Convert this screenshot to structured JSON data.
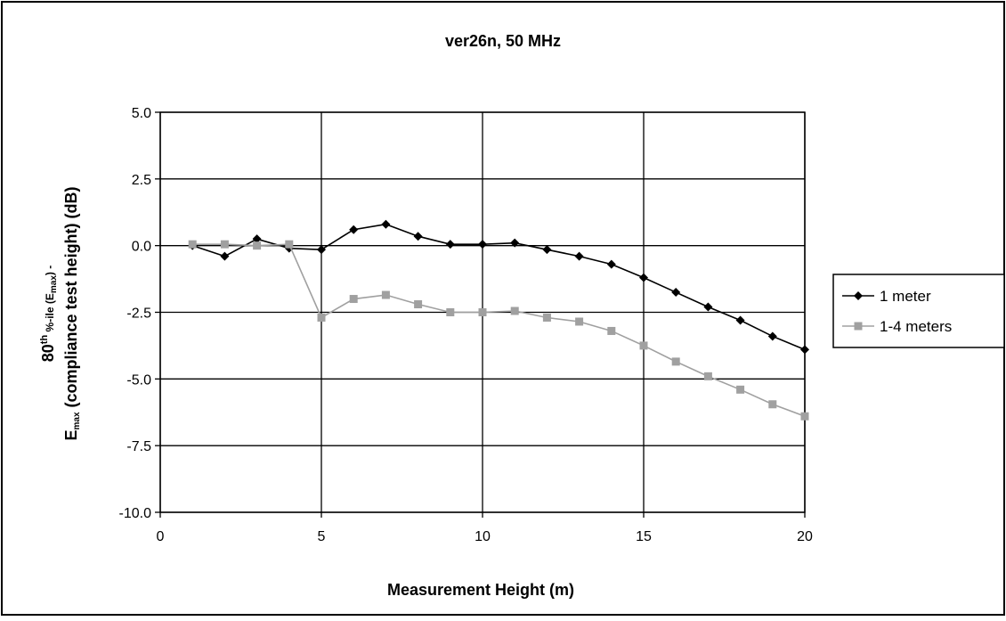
{
  "chart_data": {
    "type": "line",
    "title": "ver26n, 50 MHz",
    "xlabel": "Measurement Height (m)",
    "ylabel": {
      "line1_parts": [
        "80",
        "th",
        " %-ile (E",
        "max",
        ") -"
      ],
      "line2_parts": [
        "E",
        "max",
        " (compliance test height) (dB)"
      ]
    },
    "xlim": [
      0,
      20
    ],
    "ylim": [
      -10.0,
      5.0
    ],
    "xticks": [
      "0",
      "5",
      "10",
      "15",
      "20"
    ],
    "yticks": [
      "5.0",
      "2.5",
      "0.0",
      "-2.5",
      "-5.0",
      "-7.5",
      "-10.0"
    ],
    "grid": "major, both axes",
    "legend_position": "right",
    "x": [
      1,
      2,
      3,
      4,
      5,
      6,
      7,
      8,
      9,
      10,
      11,
      12,
      13,
      14,
      15,
      16,
      17,
      18,
      19,
      20
    ],
    "series": [
      {
        "name": "1 meter",
        "color": "#000000",
        "marker": "diamond",
        "values": [
          0.0,
          -0.4,
          0.25,
          -0.1,
          -0.15,
          0.6,
          0.8,
          0.35,
          0.05,
          0.05,
          0.1,
          -0.15,
          -0.4,
          -0.7,
          -1.2,
          -1.75,
          -2.3,
          -2.8,
          -3.4,
          -3.9
        ]
      },
      {
        "name": "1-4 meters",
        "color": "#a0a0a0",
        "marker": "square",
        "values": [
          0.05,
          0.05,
          0.0,
          0.05,
          -2.7,
          -2.0,
          -1.85,
          -2.2,
          -2.5,
          -2.5,
          -2.45,
          -2.7,
          -2.85,
          -3.2,
          -3.75,
          -4.35,
          -4.9,
          -5.4,
          -5.95,
          -6.4
        ]
      }
    ]
  }
}
